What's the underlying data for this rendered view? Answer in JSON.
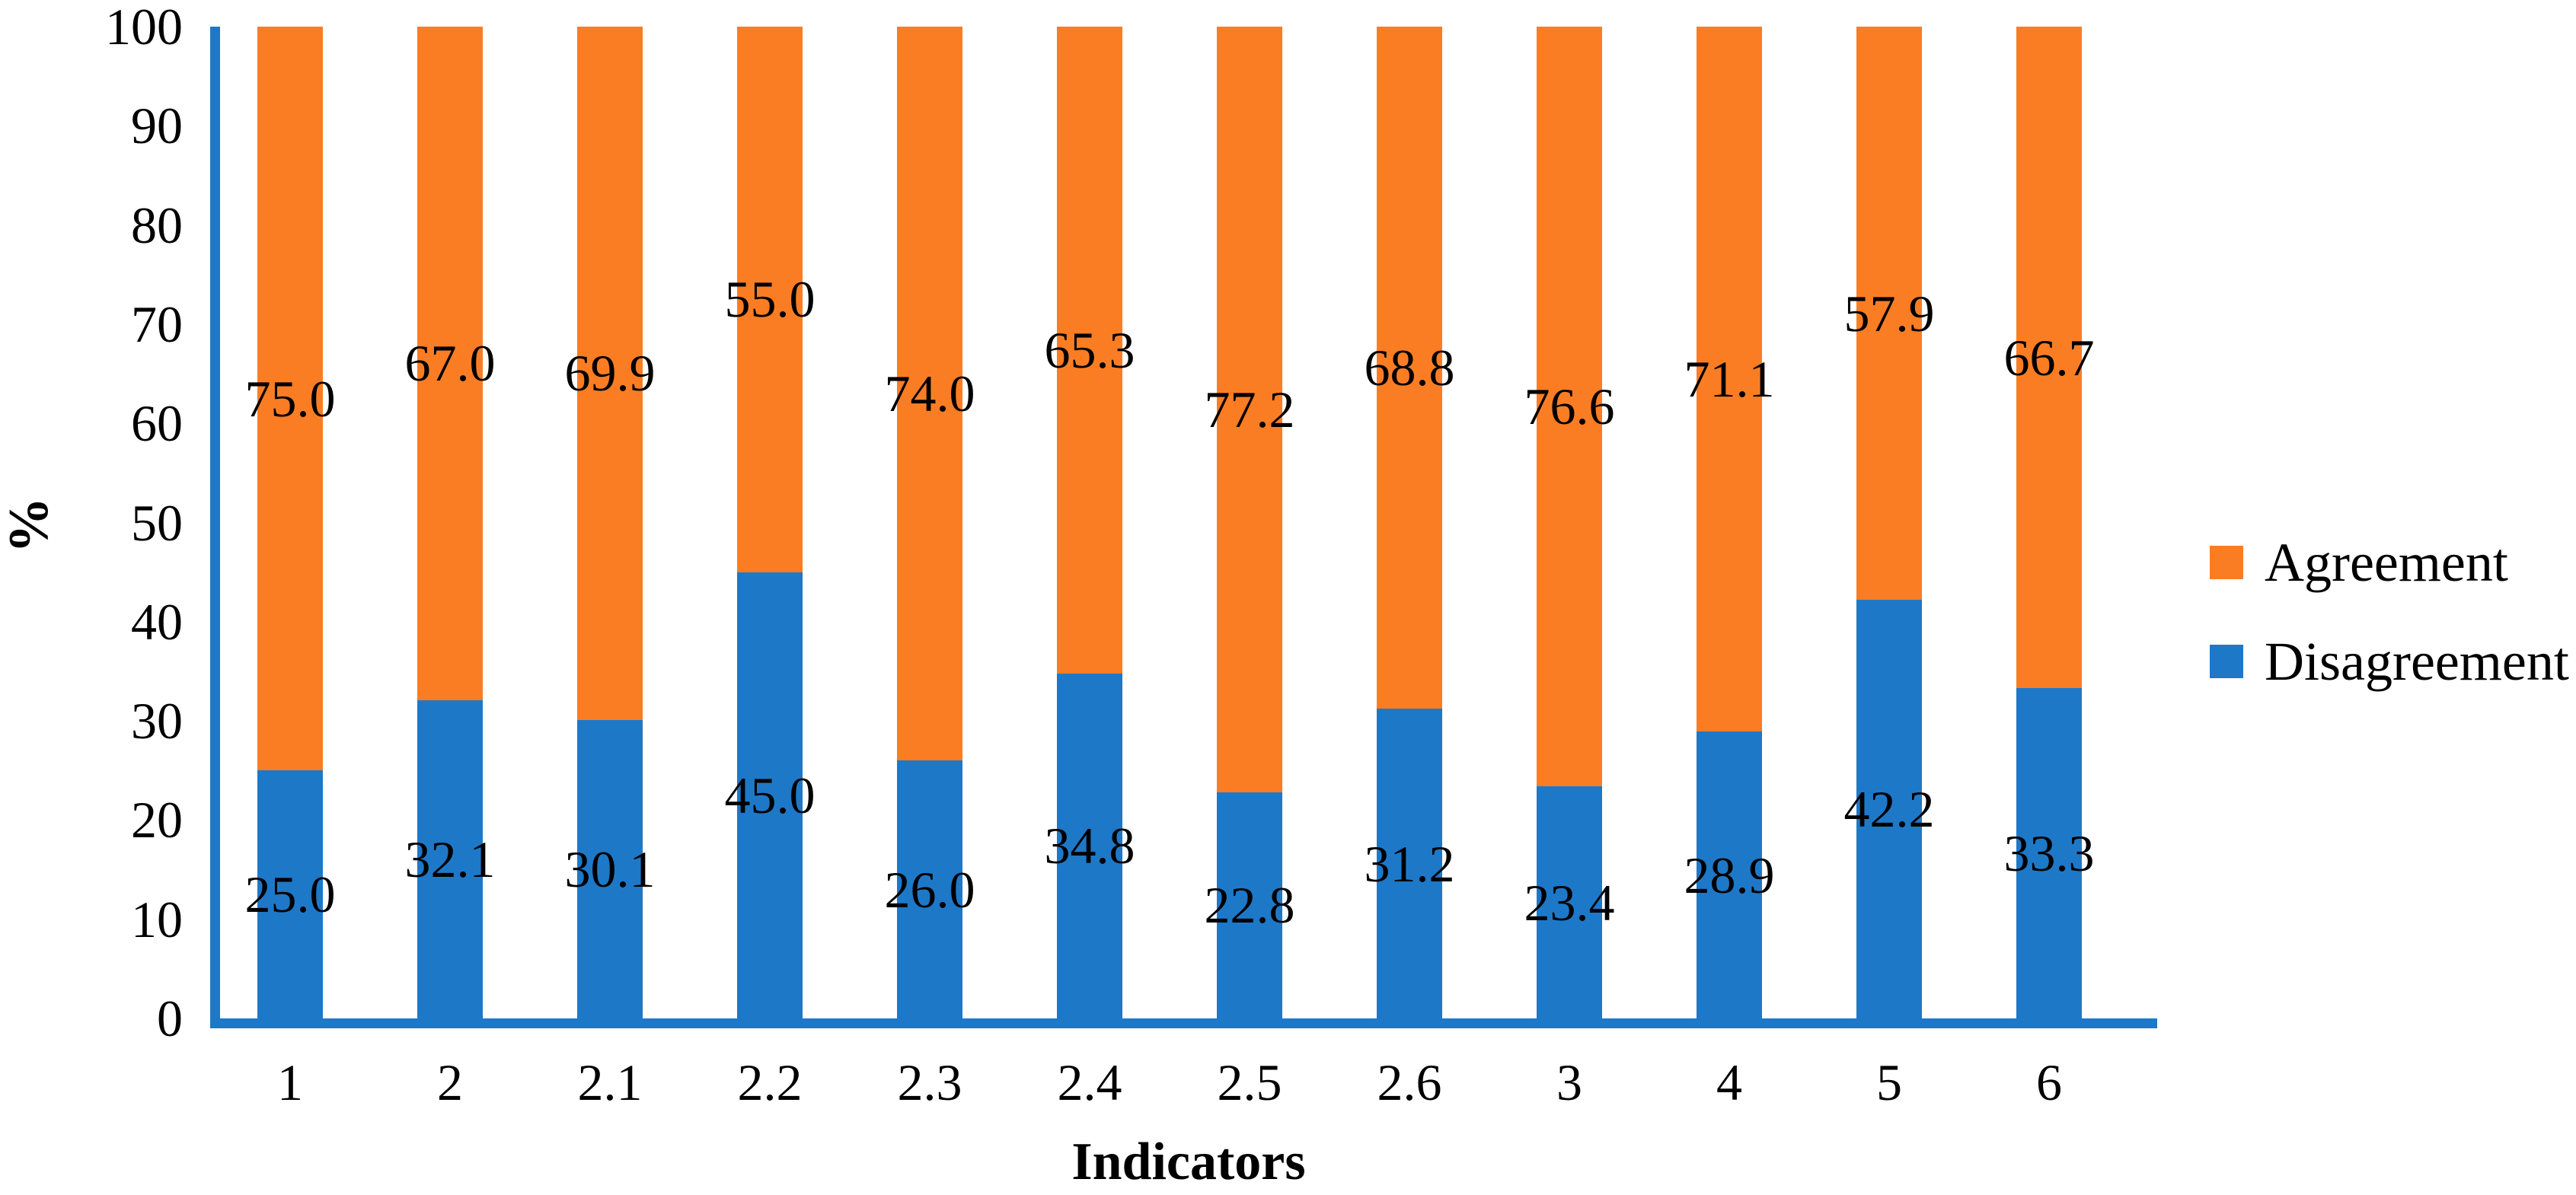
{
  "chart_data": {
    "type": "bar",
    "stacked": true,
    "percent_stacked": true,
    "xlabel": "Indicators",
    "ylabel": "%",
    "ylim": [
      0,
      100
    ],
    "yticks": [
      100,
      90,
      80,
      70,
      60,
      50,
      40,
      30,
      20,
      10,
      0
    ],
    "categories": [
      "1",
      "2",
      "2.1",
      "2.2",
      "2.3",
      "2.4",
      "2.5",
      "2.6",
      "3",
      "4",
      "5",
      "6"
    ],
    "series": [
      {
        "name": "Agreement",
        "color": "#FA7D24",
        "values": [
          75.0,
          67.0,
          69.9,
          55.0,
          74.0,
          65.3,
          77.2,
          68.8,
          76.6,
          71.1,
          57.9,
          66.7
        ],
        "labels": [
          "75.0",
          "67.0",
          "69.9",
          "55.0",
          "74.0",
          "65.3",
          "77.2",
          "68.8",
          "76.6",
          "71.1",
          "57.9",
          "66.7"
        ]
      },
      {
        "name": "Disagreement",
        "color": "#1E78C8",
        "values": [
          25.0,
          32.1,
          30.1,
          45.0,
          26.0,
          34.8,
          22.8,
          31.2,
          23.4,
          28.9,
          42.2,
          33.3
        ],
        "labels": [
          "25.0",
          "32.1",
          "30.1",
          "45.0",
          "26.0",
          "34.8",
          "22.8",
          "31.2",
          "23.4",
          "28.9",
          "42.2",
          "33.3"
        ]
      }
    ],
    "axis_color": "#1E78C8",
    "legend_position": "right",
    "grid": false
  }
}
